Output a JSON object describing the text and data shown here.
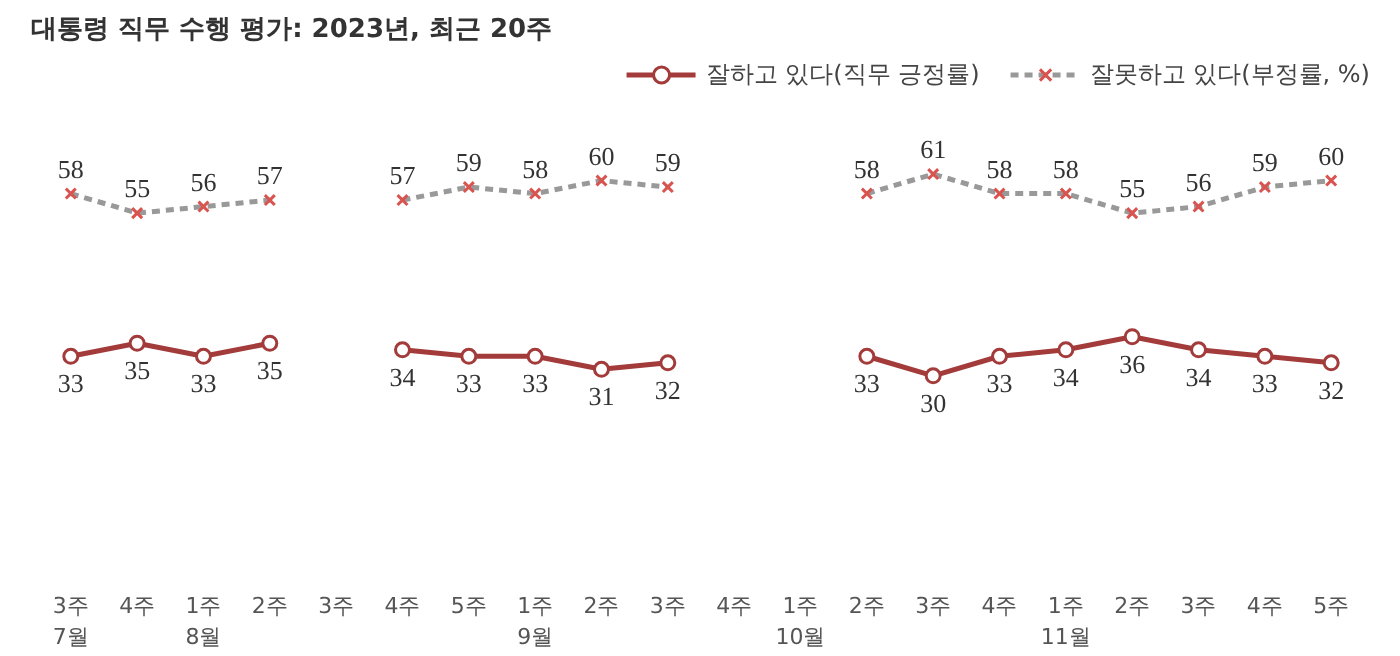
{
  "chart_data": {
    "type": "line",
    "title": "대통령 직무 수행 평가: 2023년, 최근 20주",
    "categories": [
      "3주\n7월",
      "4주",
      "1주\n8월",
      "2주",
      "3주",
      "4주",
      "5주",
      "1주\n9월",
      "2주",
      "3주",
      "4주",
      "1주\n10월",
      "2주",
      "3주",
      "4주",
      "1주\n11월",
      "2주",
      "3주",
      "4주",
      "5주"
    ],
    "series": [
      {
        "name": "잘하고 있다(직무 긍정률)",
        "color": "#a33b3b",
        "marker": "circle",
        "line_style": "solid",
        "values": [
          33,
          35,
          33,
          35,
          null,
          34,
          33,
          33,
          31,
          32,
          null,
          null,
          33,
          30,
          33,
          34,
          36,
          34,
          33,
          32
        ]
      },
      {
        "name": "잘못하고 있다(부정률, %)",
        "color": "#999999",
        "marker": "cross",
        "line_style": "dashed",
        "values": [
          58,
          55,
          56,
          57,
          null,
          57,
          59,
          58,
          60,
          59,
          null,
          null,
          58,
          61,
          58,
          58,
          55,
          56,
          59,
          60
        ]
      }
    ],
    "data_labels": true,
    "grid": false,
    "legend": "top right"
  }
}
